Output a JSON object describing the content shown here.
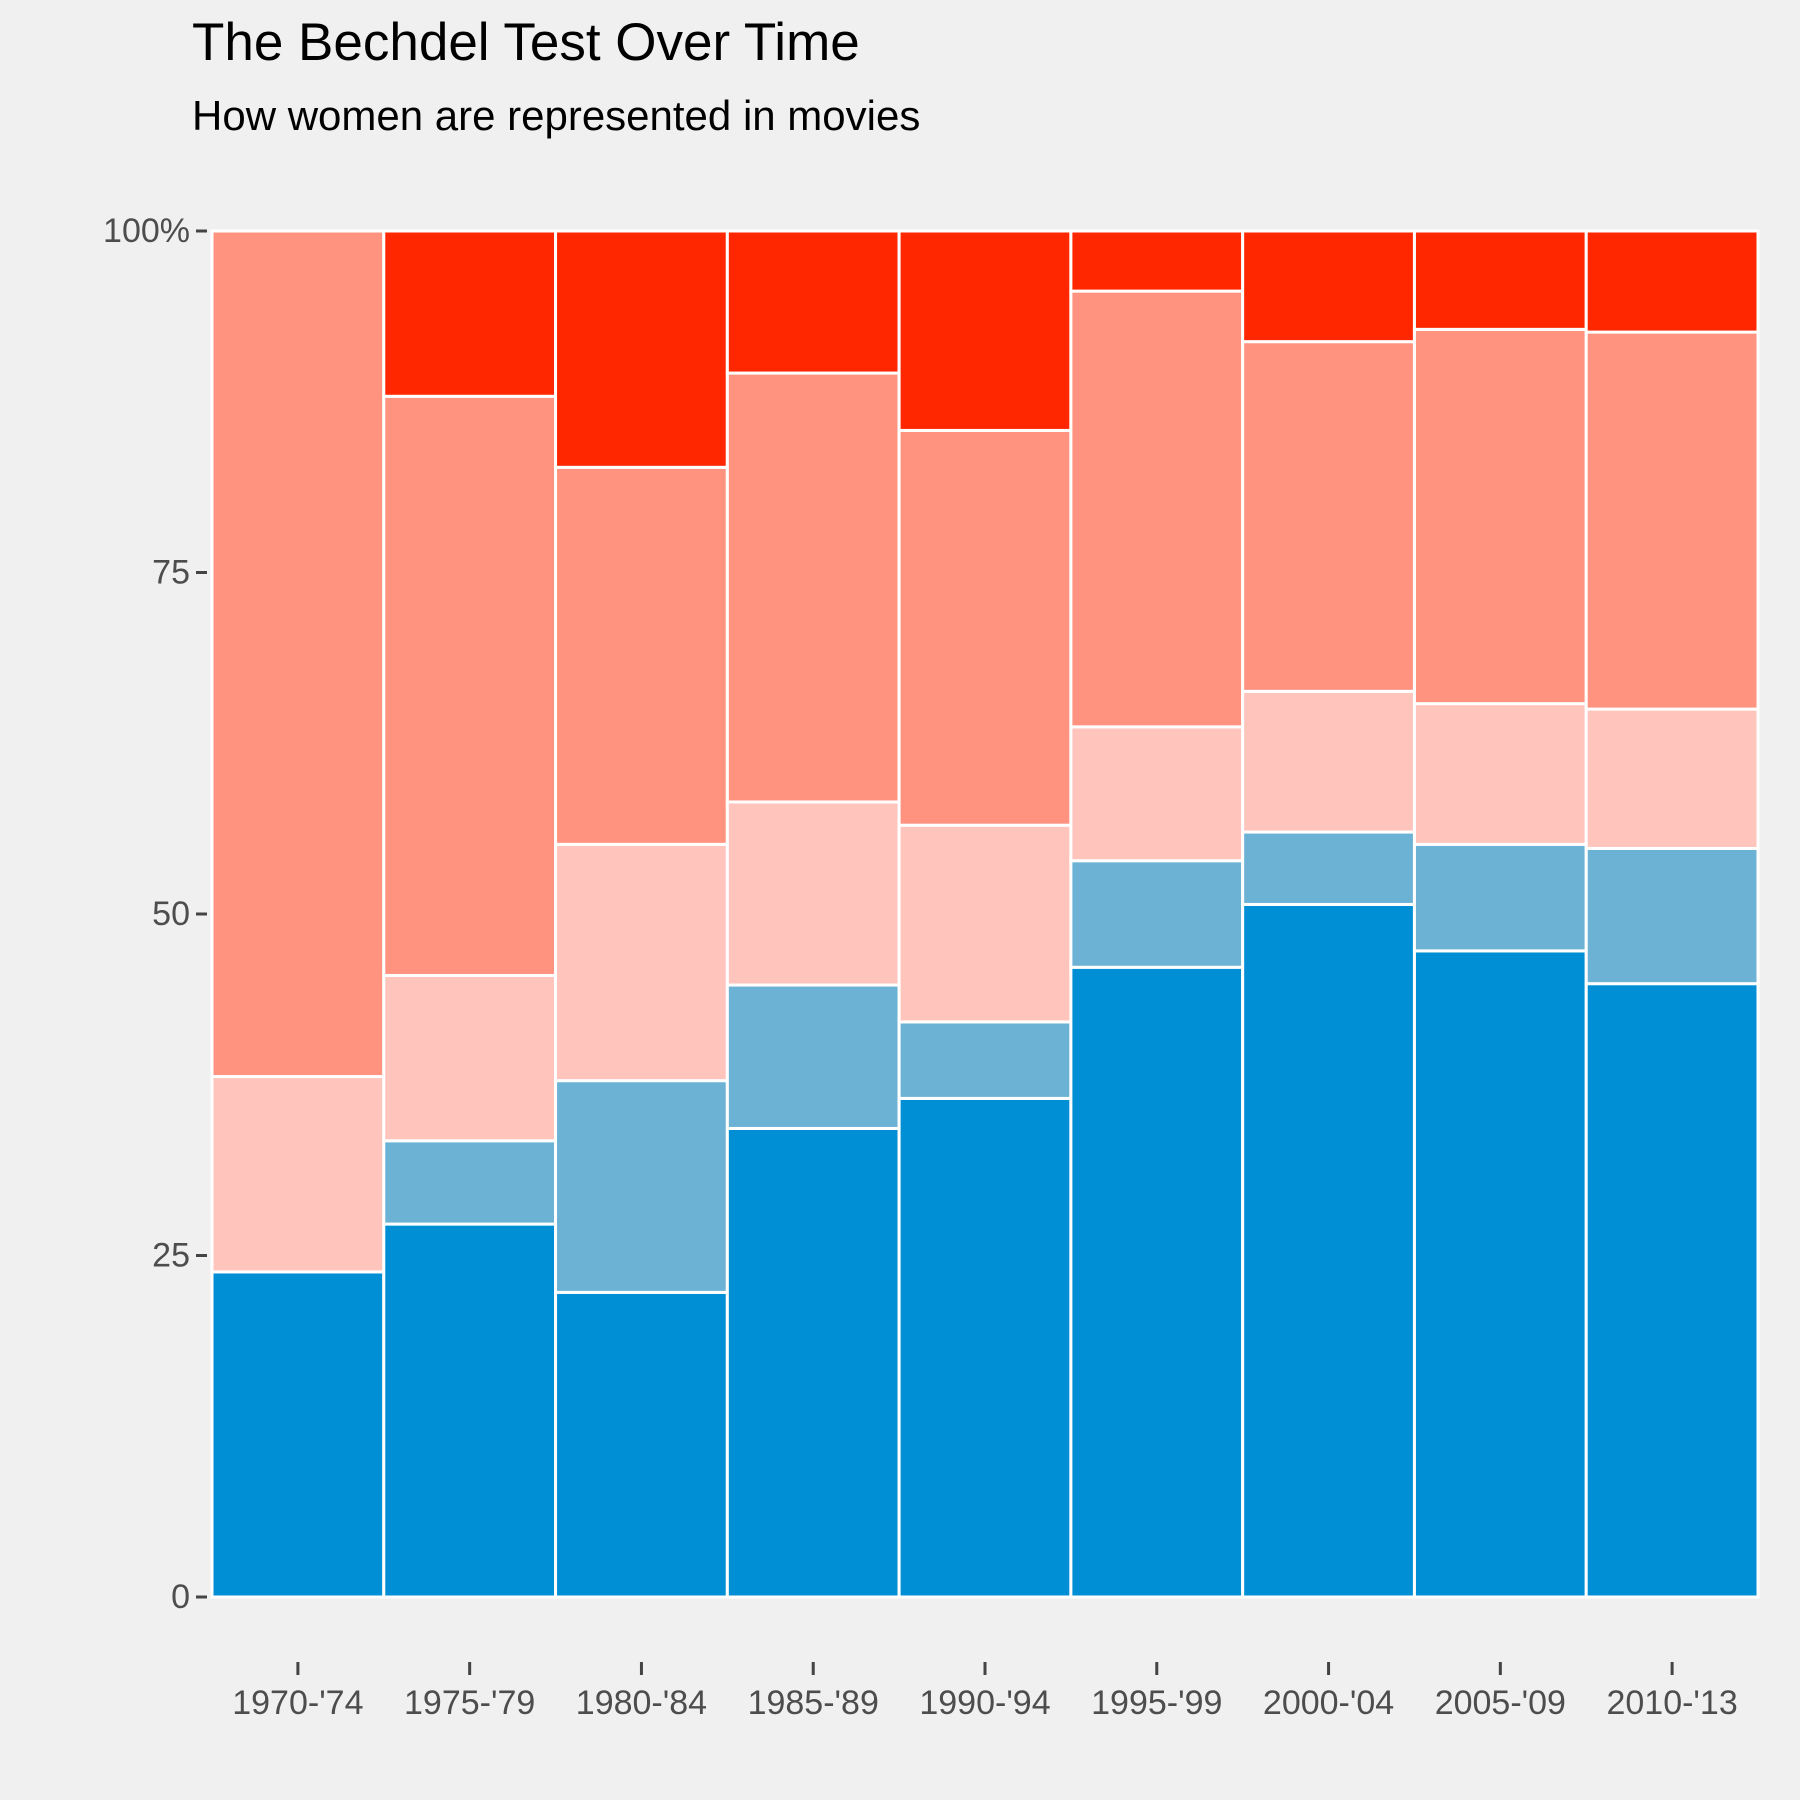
{
  "chart_data": {
    "type": "bar",
    "stacked": true,
    "normalized": true,
    "title": "The Bechdel Test Over Time",
    "subtitle": "How women are represented in movies",
    "xlabel": "",
    "ylabel": "",
    "ylim": [
      0,
      100
    ],
    "yticks": [
      0,
      25,
      50,
      75,
      100
    ],
    "ytick_labels": [
      "0",
      "25",
      "50",
      "75",
      "100%"
    ],
    "grid": false,
    "legend": "none",
    "background_color": "#f0f0f0",
    "bar_border_color": "#ffffff",
    "categories": [
      "1970-'74",
      "1975-'79",
      "1980-'84",
      "1985-'89",
      "1990-'94",
      "1995-'99",
      "2000-'04",
      "2005-'09",
      "2010-'13"
    ],
    "series": [
      {
        "color": "#008fd5",
        "values": [
          23.8,
          27.3,
          22.3,
          34.3,
          36.5,
          46.1,
          50.7,
          47.3,
          44.9
        ]
      },
      {
        "color": "#6bb2d5",
        "values": [
          0.0,
          6.1,
          15.5,
          10.5,
          5.6,
          7.8,
          5.3,
          7.8,
          9.9
        ]
      },
      {
        "color": "#ffc4bc",
        "values": [
          14.3,
          12.1,
          17.3,
          13.4,
          14.4,
          9.8,
          10.3,
          10.3,
          10.2
        ]
      },
      {
        "color": "#ff9380",
        "values": [
          61.9,
          42.4,
          27.6,
          31.4,
          28.9,
          31.9,
          25.6,
          27.4,
          27.6
        ]
      },
      {
        "color": "#ff2700",
        "values": [
          0.0,
          12.1,
          17.3,
          10.4,
          14.6,
          4.4,
          8.1,
          7.2,
          7.4
        ]
      }
    ]
  }
}
